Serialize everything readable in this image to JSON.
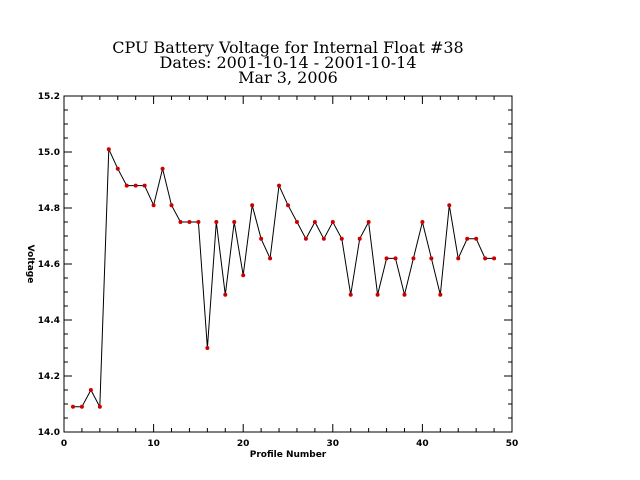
{
  "chart_data": {
    "type": "line",
    "title": [
      "CPU Battery Voltage for Internal Float #38",
      "Dates:  2001-10-14 -  2001-10-14",
      "Mar  3, 2006"
    ],
    "xlabel": "Profile Number",
    "ylabel": "Voltage",
    "xlim": [
      0,
      50
    ],
    "ylim": [
      14.0,
      15.2
    ],
    "xticks": [
      0,
      10,
      20,
      30,
      40,
      50
    ],
    "xtick_labels": [
      "0",
      "10",
      "20",
      "30",
      "40",
      "50"
    ],
    "yticks": [
      14.0,
      14.2,
      14.4,
      14.6,
      14.8,
      15.0,
      15.2
    ],
    "ytick_labels": [
      "14.0",
      "14.2",
      "14.4",
      "14.6",
      "14.8",
      "15.0",
      "15.2"
    ],
    "grid": false,
    "line_color": "#000000",
    "marker_color": "#cc0000",
    "series": [
      {
        "x": [
          1,
          2,
          3,
          4,
          5,
          6,
          7,
          8,
          9,
          10,
          11,
          12,
          13,
          14,
          15,
          16,
          17,
          18,
          19,
          20,
          21,
          22,
          23,
          24,
          25,
          26,
          27,
          28,
          29,
          30,
          31,
          32,
          33,
          34,
          35,
          36,
          37,
          38,
          39,
          40,
          41,
          42,
          43,
          44,
          45,
          46,
          47,
          48
        ],
        "values": [
          14.09,
          14.09,
          14.15,
          14.09,
          15.01,
          14.94,
          14.88,
          14.88,
          14.88,
          14.81,
          14.94,
          14.81,
          14.75,
          14.75,
          14.75,
          14.3,
          14.75,
          14.49,
          14.75,
          14.56,
          14.81,
          14.69,
          14.62,
          14.88,
          14.81,
          14.75,
          14.69,
          14.75,
          14.69,
          14.75,
          14.69,
          14.49,
          14.69,
          14.75,
          14.49,
          14.62,
          14.62,
          14.49,
          14.62,
          14.75,
          14.62,
          14.49,
          14.81,
          14.62,
          14.69,
          14.69,
          14.62,
          14.62
        ]
      }
    ]
  }
}
